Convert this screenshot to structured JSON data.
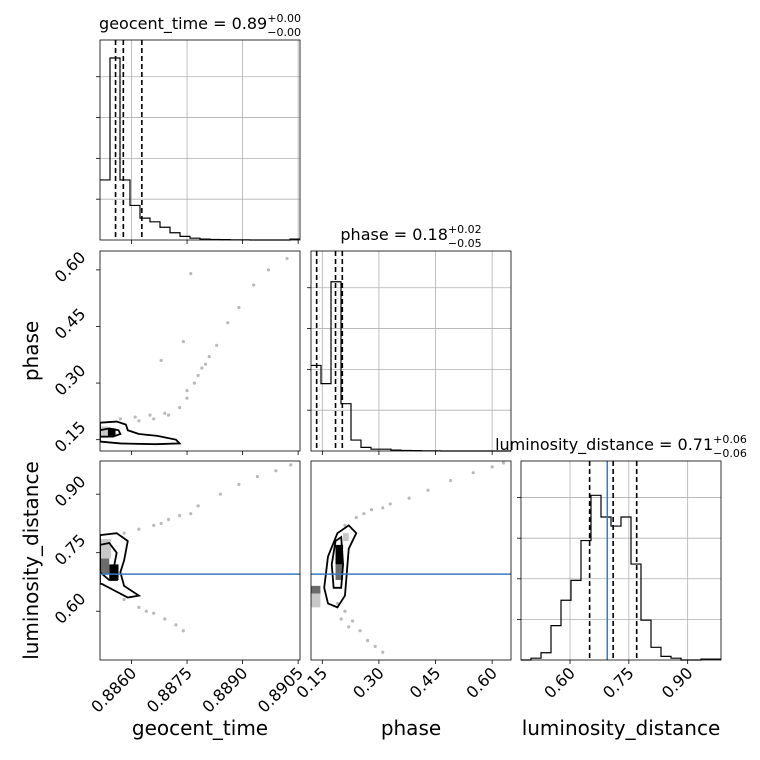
{
  "figure": {
    "title_sup_hint": "",
    "colors": {
      "hist_line": "#000000",
      "quantile_line": "#000000",
      "grid": "#b0b0b0",
      "truth": "#3a7bbf",
      "contour_fill_dark": "#000000",
      "contour_fill_mid": "#6b6b6b",
      "contour_fill_light": "#c8c8c8",
      "scatter": "#808080"
    }
  },
  "chart_data": {
    "type": "corner",
    "parameters": [
      "geocent_time",
      "phase",
      "luminosity_distance"
    ],
    "diagonal_titles": [
      {
        "name": "geocent_time",
        "median": "0.89",
        "plus": "+0.00",
        "minus": "−0.00"
      },
      {
        "name": "phase",
        "median": "0.18",
        "plus": "+0.02",
        "minus": "−0.05"
      },
      {
        "name": "luminosity_distance",
        "median": "0.71",
        "plus": "+0.06",
        "minus": "−0.06"
      }
    ],
    "axes": {
      "geocent_time": {
        "range": [
          0.88515,
          0.89055
        ],
        "ticks": [
          0.886,
          0.8875,
          0.889,
          0.8905
        ],
        "tick_labels": [
          "0.8860",
          "0.8875",
          "0.8890",
          "0.8905"
        ],
        "label": "geocent_time"
      },
      "phase": {
        "range": [
          0.12,
          0.65
        ],
        "ticks": [
          0.15,
          0.3,
          0.45,
          0.6
        ],
        "tick_labels": [
          "0.15",
          "0.30",
          "0.45",
          "0.60"
        ],
        "label": "phase"
      },
      "luminosity_distance": {
        "range": [
          0.475,
          0.985
        ],
        "ticks": [
          0.6,
          0.75,
          0.9
        ],
        "tick_labels": [
          "0.60",
          "0.75",
          "0.90"
        ],
        "label": "luminosity_distance"
      }
    },
    "truths": {
      "luminosity_distance": 0.695
    },
    "histograms": {
      "geocent_time": {
        "bin_edges": [
          0.88515,
          0.88542,
          0.88569,
          0.88596,
          0.88623,
          0.8865,
          0.88677,
          0.88704,
          0.88731,
          0.88758,
          0.88785,
          0.88812,
          0.88839,
          0.88866,
          0.88893,
          0.8892,
          0.88947,
          0.88974,
          0.89001,
          0.89028,
          0.89055
        ],
        "counts": [
          0.33,
          1.0,
          0.33,
          0.19,
          0.12,
          0.1,
          0.07,
          0.04,
          0.02,
          0.01,
          0.005,
          0.003,
          0.002,
          0.001,
          0.001,
          0.0,
          0.0,
          0.0,
          0.0,
          0.005
        ],
        "quantiles": [
          0.88557,
          0.88578,
          0.88628
        ]
      },
      "phase": {
        "bin_edges": [
          0.12,
          0.1465,
          0.173,
          0.1995,
          0.226,
          0.2525,
          0.279,
          0.3055,
          0.332,
          0.3585,
          0.385,
          0.4115,
          0.438,
          0.4645,
          0.491,
          0.5175,
          0.544,
          0.5705,
          0.597,
          0.6235,
          0.65
        ],
        "counts": [
          0.47,
          0.37,
          0.93,
          0.26,
          0.06,
          0.02,
          0.01,
          0.01,
          0.005,
          0.003,
          0.002,
          0.001,
          0.001,
          0.0,
          0.0,
          0.0,
          0.0,
          0.0,
          0.0,
          0.0
        ],
        "quantiles": [
          0.135,
          0.185,
          0.203
        ]
      },
      "luminosity_distance": {
        "bin_edges": [
          0.475,
          0.5005,
          0.526,
          0.5515,
          0.577,
          0.6025,
          0.628,
          0.6535,
          0.679,
          0.7045,
          0.73,
          0.7555,
          0.781,
          0.8065,
          0.832,
          0.8575,
          0.883,
          0.9085,
          0.934,
          0.9595,
          0.985
        ],
        "counts": [
          0.0,
          0.01,
          0.04,
          0.19,
          0.33,
          0.44,
          0.66,
          0.91,
          0.79,
          0.74,
          0.79,
          0.53,
          0.22,
          0.07,
          0.02,
          0.01,
          0.0,
          0.0,
          0.005,
          0.005
        ],
        "quantiles": [
          0.65,
          0.71,
          0.77
        ]
      }
    },
    "pair_panels": [
      {
        "x": "geocent_time",
        "y": "phase",
        "scatter": [
          [
            0.8857,
            0.205
          ],
          [
            0.8861,
            0.21
          ],
          [
            0.8865,
            0.215
          ],
          [
            0.8869,
            0.22
          ],
          [
            0.8873,
            0.235
          ],
          [
            0.8875,
            0.26
          ],
          [
            0.8877,
            0.3
          ],
          [
            0.8879,
            0.34
          ],
          [
            0.8881,
            0.37
          ],
          [
            0.8883,
            0.4
          ],
          [
            0.8886,
            0.46
          ],
          [
            0.8889,
            0.5
          ],
          [
            0.8893,
            0.56
          ],
          [
            0.8897,
            0.6
          ],
          [
            0.8902,
            0.63
          ],
          [
            0.8875,
            0.28
          ],
          [
            0.8878,
            0.32
          ],
          [
            0.888,
            0.35
          ],
          [
            0.8868,
            0.36
          ],
          [
            0.8874,
            0.41
          ],
          [
            0.8862,
            0.2
          ],
          [
            0.8866,
            0.205
          ],
          [
            0.887,
            0.215
          ],
          [
            0.8876,
            0.59
          ]
        ],
        "contours": [
          {
            "level": "outer",
            "points": [
              [
                0.88515,
                0.195
              ],
              [
                0.8856,
                0.198
              ],
              [
                0.88585,
                0.19
              ],
              [
                0.8859,
                0.175
              ],
              [
                0.8862,
                0.165
              ],
              [
                0.8867,
                0.16
              ],
              [
                0.8872,
                0.15
              ],
              [
                0.8873,
                0.14
              ],
              [
                0.88665,
                0.138
              ],
              [
                0.8857,
                0.14
              ],
              [
                0.88515,
                0.145
              ]
            ]
          },
          {
            "level": "inner",
            "points": [
              [
                0.88515,
                0.175
              ],
              [
                0.8854,
                0.18
              ],
              [
                0.88565,
                0.175
              ],
              [
                0.8857,
                0.165
              ],
              [
                0.8855,
                0.158
              ],
              [
                0.88515,
                0.158
              ]
            ]
          }
        ],
        "density_cells": [
          {
            "x0": 0.88536,
            "x1": 0.88557,
            "y0": 0.16,
            "y1": 0.18,
            "shade": "dark"
          },
          {
            "x0": 0.88515,
            "x1": 0.88536,
            "y0": 0.155,
            "y1": 0.185,
            "shade": "light"
          }
        ]
      },
      {
        "x": "geocent_time",
        "y": "luminosity_distance",
        "scatter": [
          [
            0.8858,
            0.8
          ],
          [
            0.8862,
            0.81
          ],
          [
            0.8866,
            0.82
          ],
          [
            0.887,
            0.835
          ],
          [
            0.8873,
            0.845
          ],
          [
            0.8878,
            0.87
          ],
          [
            0.8884,
            0.9
          ],
          [
            0.8889,
            0.925
          ],
          [
            0.8894,
            0.945
          ],
          [
            0.8899,
            0.96
          ],
          [
            0.8903,
            0.975
          ],
          [
            0.8858,
            0.63
          ],
          [
            0.8862,
            0.61
          ],
          [
            0.8866,
            0.595
          ],
          [
            0.8869,
            0.58
          ],
          [
            0.8872,
            0.565
          ],
          [
            0.8874,
            0.55
          ],
          [
            0.8864,
            0.6
          ],
          [
            0.8868,
            0.825
          ],
          [
            0.8876,
            0.85
          ]
        ],
        "contours": [
          {
            "level": "outer",
            "points": [
              [
                0.88515,
                0.795
              ],
              [
                0.8856,
                0.8
              ],
              [
                0.8859,
                0.78
              ],
              [
                0.8858,
                0.73
              ],
              [
                0.8857,
                0.7
              ],
              [
                0.8858,
                0.665
              ],
              [
                0.8862,
                0.64
              ],
              [
                0.8859,
                0.635
              ],
              [
                0.8855,
                0.655
              ],
              [
                0.8852,
                0.67
              ],
              [
                0.88515,
                0.67
              ]
            ]
          },
          {
            "level": "inner",
            "points": [
              [
                0.88515,
                0.77
              ],
              [
                0.8854,
                0.775
              ],
              [
                0.8856,
                0.75
              ],
              [
                0.8855,
                0.7
              ],
              [
                0.8856,
                0.68
              ],
              [
                0.8854,
                0.68
              ],
              [
                0.88515,
                0.7
              ]
            ]
          }
        ],
        "density_cells": [
          {
            "x0": 0.88515,
            "x1": 0.88545,
            "y0": 0.735,
            "y1": 0.785,
            "shade": "light"
          },
          {
            "x0": 0.8854,
            "x1": 0.88565,
            "y0": 0.68,
            "y1": 0.72,
            "shade": "dark"
          },
          {
            "x0": 0.88515,
            "x1": 0.8854,
            "y0": 0.695,
            "y1": 0.735,
            "shade": "mid"
          }
        ]
      },
      {
        "x": "phase",
        "y": "luminosity_distance",
        "scatter": [
          [
            0.21,
            0.82
          ],
          [
            0.24,
            0.84
          ],
          [
            0.28,
            0.86
          ],
          [
            0.33,
            0.875
          ],
          [
            0.38,
            0.89
          ],
          [
            0.43,
            0.91
          ],
          [
            0.49,
            0.935
          ],
          [
            0.55,
            0.955
          ],
          [
            0.6,
            0.97
          ],
          [
            0.63,
            0.98
          ],
          [
            0.26,
            0.85
          ],
          [
            0.31,
            0.865
          ],
          [
            0.19,
            0.62
          ],
          [
            0.21,
            0.6
          ],
          [
            0.23,
            0.575
          ],
          [
            0.25,
            0.55
          ],
          [
            0.27,
            0.525
          ],
          [
            0.29,
            0.51
          ],
          [
            0.31,
            0.495
          ],
          [
            0.2,
            0.58
          ],
          [
            0.22,
            0.56
          ]
        ],
        "contours": [
          {
            "level": "outer",
            "points": [
              [
                0.165,
                0.62
              ],
              [
                0.155,
                0.66
              ],
              [
                0.165,
                0.74
              ],
              [
                0.19,
                0.8
              ],
              [
                0.22,
                0.82
              ],
              [
                0.24,
                0.8
              ],
              [
                0.22,
                0.76
              ],
              [
                0.215,
                0.7
              ],
              [
                0.21,
                0.64
              ],
              [
                0.19,
                0.61
              ]
            ]
          },
          {
            "level": "inner",
            "points": [
              [
                0.18,
                0.66
              ],
              [
                0.175,
                0.72
              ],
              [
                0.185,
                0.78
              ],
              [
                0.2,
                0.79
              ],
              [
                0.205,
                0.72
              ],
              [
                0.2,
                0.66
              ]
            ]
          }
        ],
        "density_cells": [
          {
            "x0": 0.185,
            "x1": 0.205,
            "y0": 0.72,
            "y1": 0.77,
            "shade": "dark"
          },
          {
            "x0": 0.185,
            "x1": 0.205,
            "y0": 0.68,
            "y1": 0.72,
            "shade": "mid"
          },
          {
            "x0": 0.12,
            "x1": 0.145,
            "y0": 0.645,
            "y1": 0.665,
            "shade": "mid"
          },
          {
            "x0": 0.12,
            "x1": 0.145,
            "y0": 0.61,
            "y1": 0.645,
            "shade": "light"
          },
          {
            "x0": 0.205,
            "x1": 0.22,
            "y0": 0.78,
            "y1": 0.8,
            "shade": "light"
          }
        ]
      }
    ],
    "grid": true
  }
}
